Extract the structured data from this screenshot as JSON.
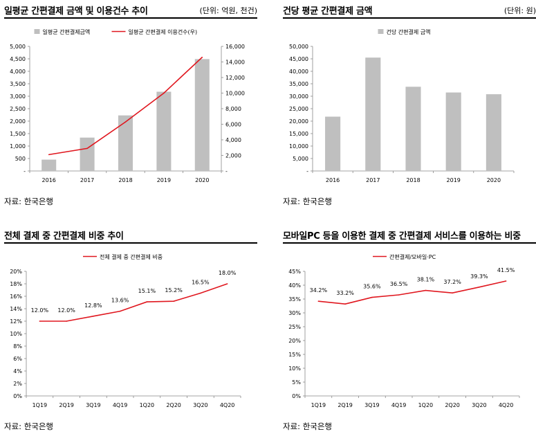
{
  "source_label": "자료: 한국은행",
  "chart_data": [
    {
      "type": "bar",
      "title": "일평균 간편결제 금액 및 이용건수 추이",
      "unit": "(단위: 억원, 천건)",
      "categories": [
        "2016",
        "2017",
        "2018",
        "2019",
        "2020"
      ],
      "series": [
        {
          "name": "일평균 간편결제금액",
          "type": "bar",
          "axis": "left",
          "values": [
            455,
            1340,
            2230,
            3180,
            4490
          ],
          "color": "#bfbfbf"
        },
        {
          "name": "일평균 간편결제 이용건수(우)",
          "type": "line",
          "axis": "right",
          "values": [
            2100,
            2900,
            6300,
            10000,
            14600
          ],
          "color": "#e0161e"
        }
      ],
      "ylim": [
        0,
        5000
      ],
      "yticks": [
        "-",
        "500",
        "1,000",
        "1,500",
        "2,000",
        "2,500",
        "3,000",
        "3,500",
        "4,000",
        "4,500",
        "5,000"
      ],
      "y2lim": [
        0,
        16000
      ],
      "y2ticks": [
        "-",
        "2,000",
        "4,000",
        "6,000",
        "8,000",
        "10,000",
        "12,000",
        "14,000",
        "16,000"
      ],
      "legend": "top"
    },
    {
      "type": "bar",
      "title": "건당 평균 간편결제 금액",
      "unit": "(단위: 원)",
      "categories": [
        "2016",
        "2017",
        "2018",
        "2019",
        "2020"
      ],
      "series": [
        {
          "name": "건당 간편결제 금액",
          "type": "bar",
          "axis": "left",
          "values": [
            21800,
            45500,
            33800,
            31500,
            30800
          ],
          "color": "#bfbfbf"
        }
      ],
      "ylim": [
        0,
        50000
      ],
      "yticks": [
        "-",
        "5,000",
        "10,000",
        "15,000",
        "20,000",
        "25,000",
        "30,000",
        "35,000",
        "40,000",
        "45,000",
        "50,000"
      ],
      "legend": "top"
    },
    {
      "type": "line",
      "title": "전체 결제 중 간편결제 비중 추이",
      "categories": [
        "1Q19",
        "2Q19",
        "3Q19",
        "4Q19",
        "1Q20",
        "2Q20",
        "3Q20",
        "4Q20"
      ],
      "series": [
        {
          "name": "전체 결제 중 간편결제 비중",
          "values": [
            12.0,
            12.0,
            12.8,
            13.6,
            15.1,
            15.2,
            16.5,
            18.0
          ],
          "labels": [
            "12.0%",
            "12.0%",
            "12.8%",
            "13.6%",
            "15.1%",
            "15.2%",
            "16.5%",
            "18.0%"
          ],
          "color": "#e0161e"
        }
      ],
      "ylim": [
        0,
        20
      ],
      "yticks": [
        "0%",
        "2%",
        "4%",
        "6%",
        "8%",
        "10%",
        "12%",
        "14%",
        "16%",
        "18%",
        "20%"
      ],
      "legend": "top"
    },
    {
      "type": "line",
      "title": "모바일PC 등을 이용한 결제 중 간편결제 서비스를 이용하는 비중",
      "categories": [
        "1Q19",
        "2Q19",
        "3Q19",
        "4Q19",
        "1Q20",
        "2Q20",
        "3Q20",
        "4Q20"
      ],
      "series": [
        {
          "name": "간편결제/모바일·PC",
          "values": [
            34.2,
            33.2,
            35.6,
            36.5,
            38.1,
            37.2,
            39.3,
            41.5
          ],
          "labels": [
            "34.2%",
            "33.2%",
            "35.6%",
            "36.5%",
            "38.1%",
            "37.2%",
            "39.3%",
            "41.5%"
          ],
          "color": "#e0161e"
        }
      ],
      "ylim": [
        0,
        45
      ],
      "yticks": [
        "0%",
        "5%",
        "10%",
        "15%",
        "20%",
        "25%",
        "30%",
        "35%",
        "40%",
        "45%"
      ],
      "legend": "top"
    }
  ]
}
